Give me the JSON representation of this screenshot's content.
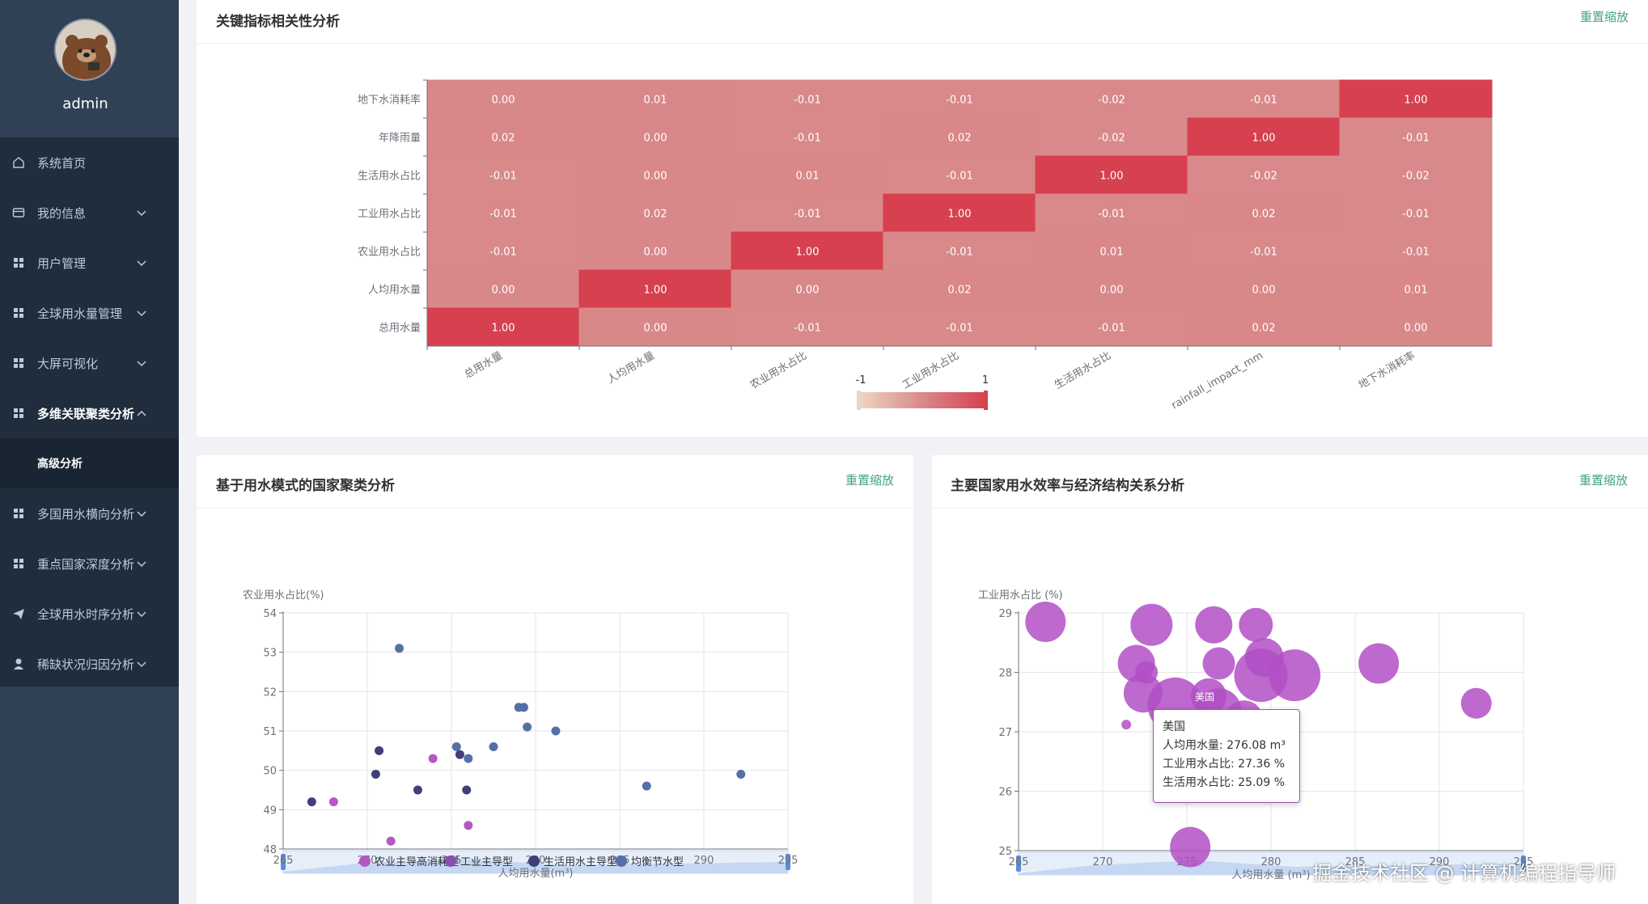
{
  "sidebar": {
    "username": "admin",
    "items": [
      {
        "label": "系统首页",
        "icon": "home-icon"
      },
      {
        "label": "我的信息",
        "icon": "card-icon"
      },
      {
        "label": "用户管理",
        "icon": "grid-icon"
      },
      {
        "label": "全球用水量管理",
        "icon": "grid-icon"
      },
      {
        "label": "大屏可视化",
        "icon": "grid-icon"
      },
      {
        "label": "多维关联聚类分析",
        "icon": "grid-icon"
      },
      {
        "label": "高级分析",
        "icon": ""
      },
      {
        "label": "多国用水横向分析",
        "icon": "grid-icon"
      },
      {
        "label": "重点国家深度分析",
        "icon": "grid-icon"
      },
      {
        "label": "全球用水时序分析",
        "icon": "send-icon"
      },
      {
        "label": "稀缺状况归因分析",
        "icon": "user-icon"
      }
    ]
  },
  "panels": {
    "corr": {
      "title": "关键指标相关性分析",
      "reset": "重置缩放"
    },
    "cluster": {
      "title": "基于用水模式的国家聚类分析",
      "reset": "重置缩放"
    },
    "efficiency": {
      "title": "主要国家用水效率与经济结构关系分析",
      "reset": "重置缩放"
    }
  },
  "tooltip": {
    "country": "美国",
    "line1": "人均用水量: 276.08 m³",
    "line2": "工业用水占比: 27.36 %",
    "line3": "生活用水占比: 25.09 %"
  },
  "watermark": "掘金技术社区 @ 计算机编程指导师",
  "colors": {
    "sidebar_top": "#304156",
    "sidebar_menu": "#1f2d3d",
    "accent": "#45a37a",
    "heat_high": "#d6404f",
    "heat_low": "#d9888a",
    "bubble": "#b14fc5"
  },
  "chart_data": [
    {
      "type": "heatmap",
      "y_labels": [
        "地下水消耗率",
        "年降雨量",
        "生活用水占比",
        "工业用水占比",
        "农业用水占比",
        "人均用水量",
        "总用水量"
      ],
      "x_labels": [
        "总用水量",
        "人均用水量",
        "农业用水占比",
        "工业用水占比",
        "生活用水占比",
        "rainfall_impact_mm",
        "地下水消耗率"
      ],
      "values": [
        [
          "0.00",
          "0.01",
          "-0.01",
          "-0.01",
          "-0.02",
          "-0.01",
          "1.00"
        ],
        [
          "0.02",
          "0.00",
          "-0.01",
          "0.02",
          "-0.02",
          "1.00",
          "-0.01"
        ],
        [
          "-0.01",
          "0.00",
          "0.01",
          "-0.01",
          "1.00",
          "-0.02",
          "-0.02"
        ],
        [
          "-0.01",
          "0.02",
          "-0.01",
          "1.00",
          "-0.01",
          "0.02",
          "-0.01"
        ],
        [
          "-0.01",
          "0.00",
          "1.00",
          "-0.01",
          "0.01",
          "-0.01",
          "-0.01"
        ],
        [
          "0.00",
          "1.00",
          "0.00",
          "0.02",
          "0.00",
          "0.00",
          "0.01"
        ],
        [
          "1.00",
          "0.00",
          "-0.01",
          "-0.01",
          "-0.01",
          "0.02",
          "0.00"
        ]
      ],
      "visual_map": {
        "min": "-1",
        "max": "1"
      }
    },
    {
      "type": "scatter",
      "ylabel": "农业用水占比(%)",
      "xlabel": "人均用水量(m³)",
      "xlim": [
        265,
        295
      ],
      "ylim": [
        48,
        54
      ],
      "x_ticks": [
        "265",
        "270",
        "275",
        "280",
        "285",
        "290",
        "295"
      ],
      "y_ticks": [
        "48",
        "49",
        "50",
        "51",
        "52",
        "53",
        "54"
      ],
      "legend_position": "bottom",
      "series": [
        {
          "name": "农业主导高消耗型",
          "color": "#b656c4",
          "points": [
            [
              268,
              49.2
            ],
            [
              271.4,
              48.2
            ],
            [
              273.9,
              50.3
            ],
            [
              276,
              48.6
            ]
          ]
        },
        {
          "name": "工业主导型",
          "color": "#8a4cb5",
          "points": []
        },
        {
          "name": "生活用水主导型",
          "color": "#3f3f7a",
          "points": [
            [
              266.7,
              49.2
            ],
            [
              270.5,
              49.9
            ],
            [
              270.7,
              50.5
            ],
            [
              273,
              49.5
            ],
            [
              275.5,
              50.4
            ],
            [
              275.9,
              49.5
            ]
          ]
        },
        {
          "name": "均衡节水型",
          "color": "#5470a8",
          "points": [
            [
              271.9,
              53.1
            ],
            [
              275.3,
              50.6
            ],
            [
              276,
              50.3
            ],
            [
              277.5,
              50.6
            ],
            [
              279,
              51.6
            ],
            [
              279.3,
              51.6
            ],
            [
              279.5,
              51.1
            ],
            [
              281.2,
              51
            ],
            [
              286.6,
              49.6
            ],
            [
              292.2,
              49.9
            ]
          ]
        }
      ]
    },
    {
      "type": "scatter",
      "ylabel": "工业用水占比 (%)",
      "xlabel": "人均用水量 (m³)",
      "xlim": [
        265,
        295
      ],
      "ylim": [
        25,
        29
      ],
      "x_ticks": [
        "265",
        "270",
        "275",
        "280",
        "285",
        "290",
        "295"
      ],
      "y_ticks": [
        "25",
        "26",
        "27",
        "28",
        "29"
      ],
      "label": "美国",
      "series": [
        {
          "name": "",
          "color": "#b14fc5",
          "points": [
            [
              266.6,
              28.85,
              25
            ],
            [
              271.4,
              27.12,
              6
            ],
            [
              272.9,
              28.8,
              26
            ],
            [
              272,
              28.15,
              23
            ],
            [
              272.6,
              28.0,
              14
            ],
            [
              272.4,
              27.65,
              24
            ],
            [
              274.3,
              27.45,
              34
            ],
            [
              275.2,
              25.06,
              25
            ],
            [
              276.6,
              28.8,
              23
            ],
            [
              276.9,
              28.15,
              20
            ],
            [
              276.3,
              27.6,
              22
            ],
            [
              276.9,
              27.35,
              28
            ],
            [
              278.4,
              27.2,
              24
            ],
            [
              279.1,
              28.8,
              21
            ],
            [
              279.6,
              28.25,
              24
            ],
            [
              279.4,
              27.95,
              33
            ],
            [
              281.4,
              27.95,
              32
            ],
            [
              286.4,
              28.15,
              25
            ],
            [
              292.2,
              27.48,
              19
            ]
          ]
        }
      ]
    }
  ]
}
